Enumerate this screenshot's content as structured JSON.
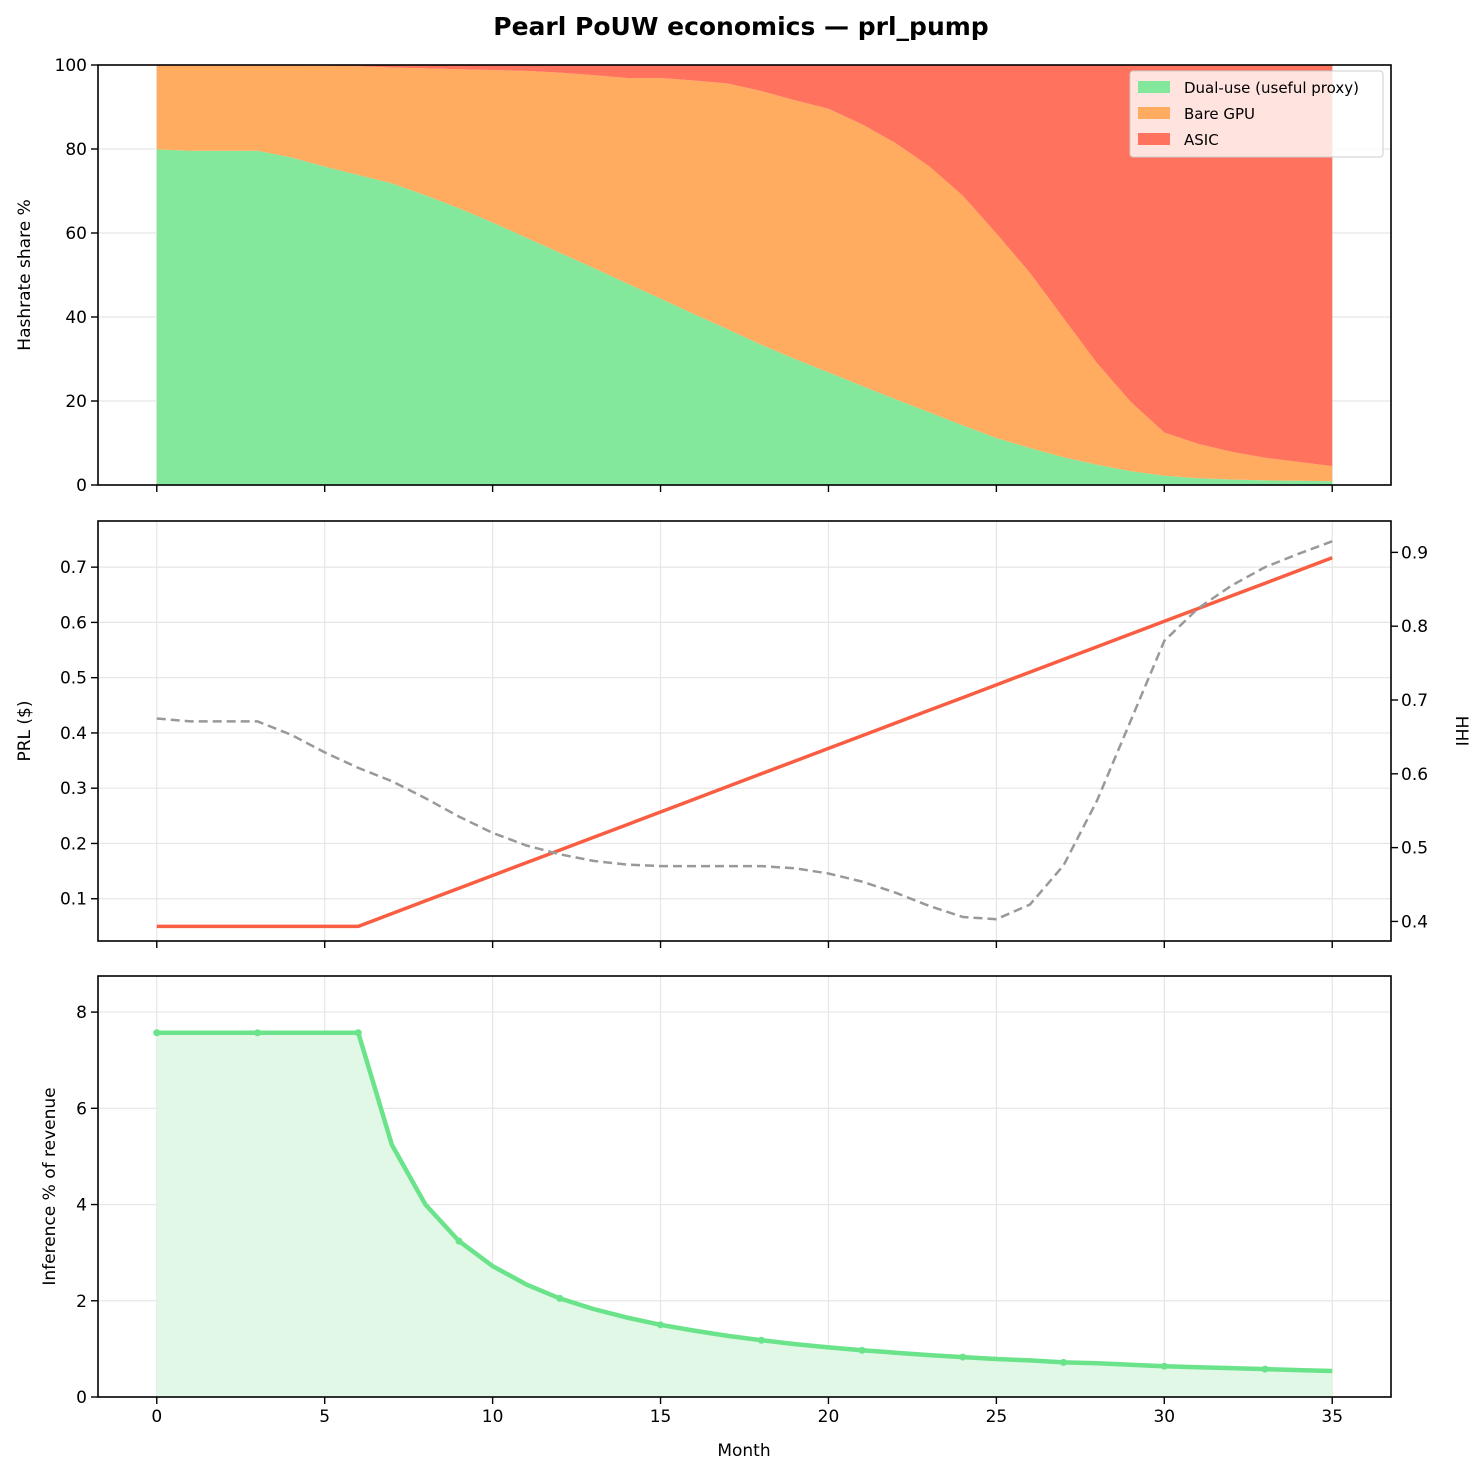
{
  "chart_data": {
    "title": "Pearl PoUW economics — prl_pump",
    "x": [
      0,
      1,
      2,
      3,
      4,
      5,
      6,
      7,
      8,
      9,
      10,
      11,
      12,
      13,
      14,
      15,
      16,
      17,
      18,
      19,
      20,
      21,
      22,
      23,
      24,
      25,
      26,
      27,
      28,
      29,
      30,
      31,
      32,
      33,
      34,
      35
    ],
    "xlabel": "Month",
    "xlim": [
      -1.75,
      36.75
    ],
    "xticks": [
      0,
      5,
      10,
      15,
      20,
      25,
      30,
      35
    ],
    "panels": [
      {
        "type": "area",
        "stacked": true,
        "ylabel": "Hashrate share %",
        "ylim": [
          0,
          100
        ],
        "yticks": [
          0,
          20,
          40,
          60,
          80,
          100
        ],
        "grid": true,
        "legend": "top-right",
        "series": [
          {
            "name": "Dual-use (useful proxy)",
            "color": "#84e89c",
            "values": [
              79.9,
              79.6,
              79.6,
              79.6,
              78.0,
              75.8,
              73.8,
              71.8,
              69.0,
              65.9,
              62.5,
              58.9,
              55.3,
              51.7,
              48.0,
              44.4,
              40.7,
              37.1,
              33.4,
              30.0,
              26.8,
              23.6,
              20.4,
              17.3,
              14.2,
              11.2,
              8.8,
              6.6,
              4.8,
              3.3,
              2.2,
              1.6,
              1.3,
              1.1,
              1.0,
              0.9
            ]
          },
          {
            "name": "Bare GPU",
            "color": "#ffab60",
            "values": [
              20.1,
              20.4,
              20.4,
              20.4,
              21.9,
              24.0,
              25.9,
              27.6,
              30.2,
              33.1,
              36.3,
              39.7,
              42.9,
              45.9,
              48.9,
              52.5,
              55.6,
              58.5,
              60.4,
              61.6,
              62.8,
              62.3,
              61.0,
              58.6,
              54.7,
              48.7,
              41.7,
              33.1,
              24.2,
              16.5,
              10.3,
              8.2,
              6.6,
              5.4,
              4.5,
              3.6
            ]
          },
          {
            "name": "ASIC",
            "color": "#ff725e",
            "values": [
              0,
              0,
              0,
              0,
              0.1,
              0.2,
              0.3,
              0.6,
              0.8,
              1.0,
              1.2,
              1.4,
              1.8,
              2.4,
              3.1,
              3.1,
              3.7,
              4.4,
              6.2,
              8.4,
              10.4,
              14.1,
              18.6,
              24.1,
              31.1,
              40.1,
              49.5,
              60.3,
              71.0,
              80.2,
              87.5,
              90.2,
              92.1,
              93.5,
              94.5,
              95.5
            ]
          }
        ]
      },
      {
        "type": "line",
        "ylabel": "PRL ($)",
        "ylim": [
          0.0235,
          0.7835
        ],
        "yticks": [
          0.1,
          0.2,
          0.3,
          0.4,
          0.5,
          0.6,
          0.7
        ],
        "ylabel_right": "HHI",
        "ylim_right": [
          0.3735,
          0.9425
        ],
        "yticks_right": [
          0.4,
          0.5,
          0.6,
          0.7,
          0.8,
          0.9
        ],
        "grid": true,
        "series": [
          {
            "axis": "left",
            "color": "#f95e42",
            "style": "solid",
            "values": [
              0.05,
              0.05,
              0.05,
              0.05,
              0.05,
              0.05,
              0.05,
              0.073,
              0.096,
              0.119,
              0.142,
              0.165,
              0.188,
              0.211,
              0.234,
              0.257,
              0.28,
              0.303,
              0.326,
              0.349,
              0.372,
              0.395,
              0.418,
              0.441,
              0.464,
              0.487,
              0.51,
              0.533,
              0.556,
              0.579,
              0.602,
              0.625,
              0.648,
              0.671,
              0.694,
              0.717
            ]
          },
          {
            "axis": "right",
            "color": "#999999",
            "style": "dashed",
            "values": [
              0.675,
              0.671,
              0.671,
              0.671,
              0.653,
              0.629,
              0.608,
              0.59,
              0.567,
              0.542,
              0.52,
              0.503,
              0.491,
              0.482,
              0.477,
              0.475,
              0.475,
              0.475,
              0.475,
              0.472,
              0.465,
              0.454,
              0.439,
              0.421,
              0.406,
              0.403,
              0.423,
              0.476,
              0.564,
              0.672,
              0.78,
              0.824,
              0.855,
              0.88,
              0.898,
              0.915
            ]
          }
        ]
      },
      {
        "type": "area",
        "ylabel": "Inference % of revenue",
        "ylim": [
          0,
          8.75
        ],
        "yticks": [
          0,
          2,
          4,
          6,
          8
        ],
        "grid": true,
        "series": [
          {
            "color": "#6ae38a",
            "fill": "#e1f8e7",
            "markers_at": [
              0,
              3,
              6,
              9,
              12,
              15,
              18,
              21,
              24,
              27,
              30,
              33
            ],
            "values": [
              7.57,
              7.57,
              7.57,
              7.57,
              7.57,
              7.57,
              7.57,
              5.24,
              4.0,
              3.24,
              2.72,
              2.34,
              2.05,
              1.83,
              1.65,
              1.5,
              1.38,
              1.27,
              1.18,
              1.1,
              1.03,
              0.97,
              0.92,
              0.87,
              0.83,
              0.79,
              0.76,
              0.72,
              0.7,
              0.67,
              0.64,
              0.62,
              0.6,
              0.58,
              0.56,
              0.54
            ]
          }
        ]
      }
    ]
  }
}
